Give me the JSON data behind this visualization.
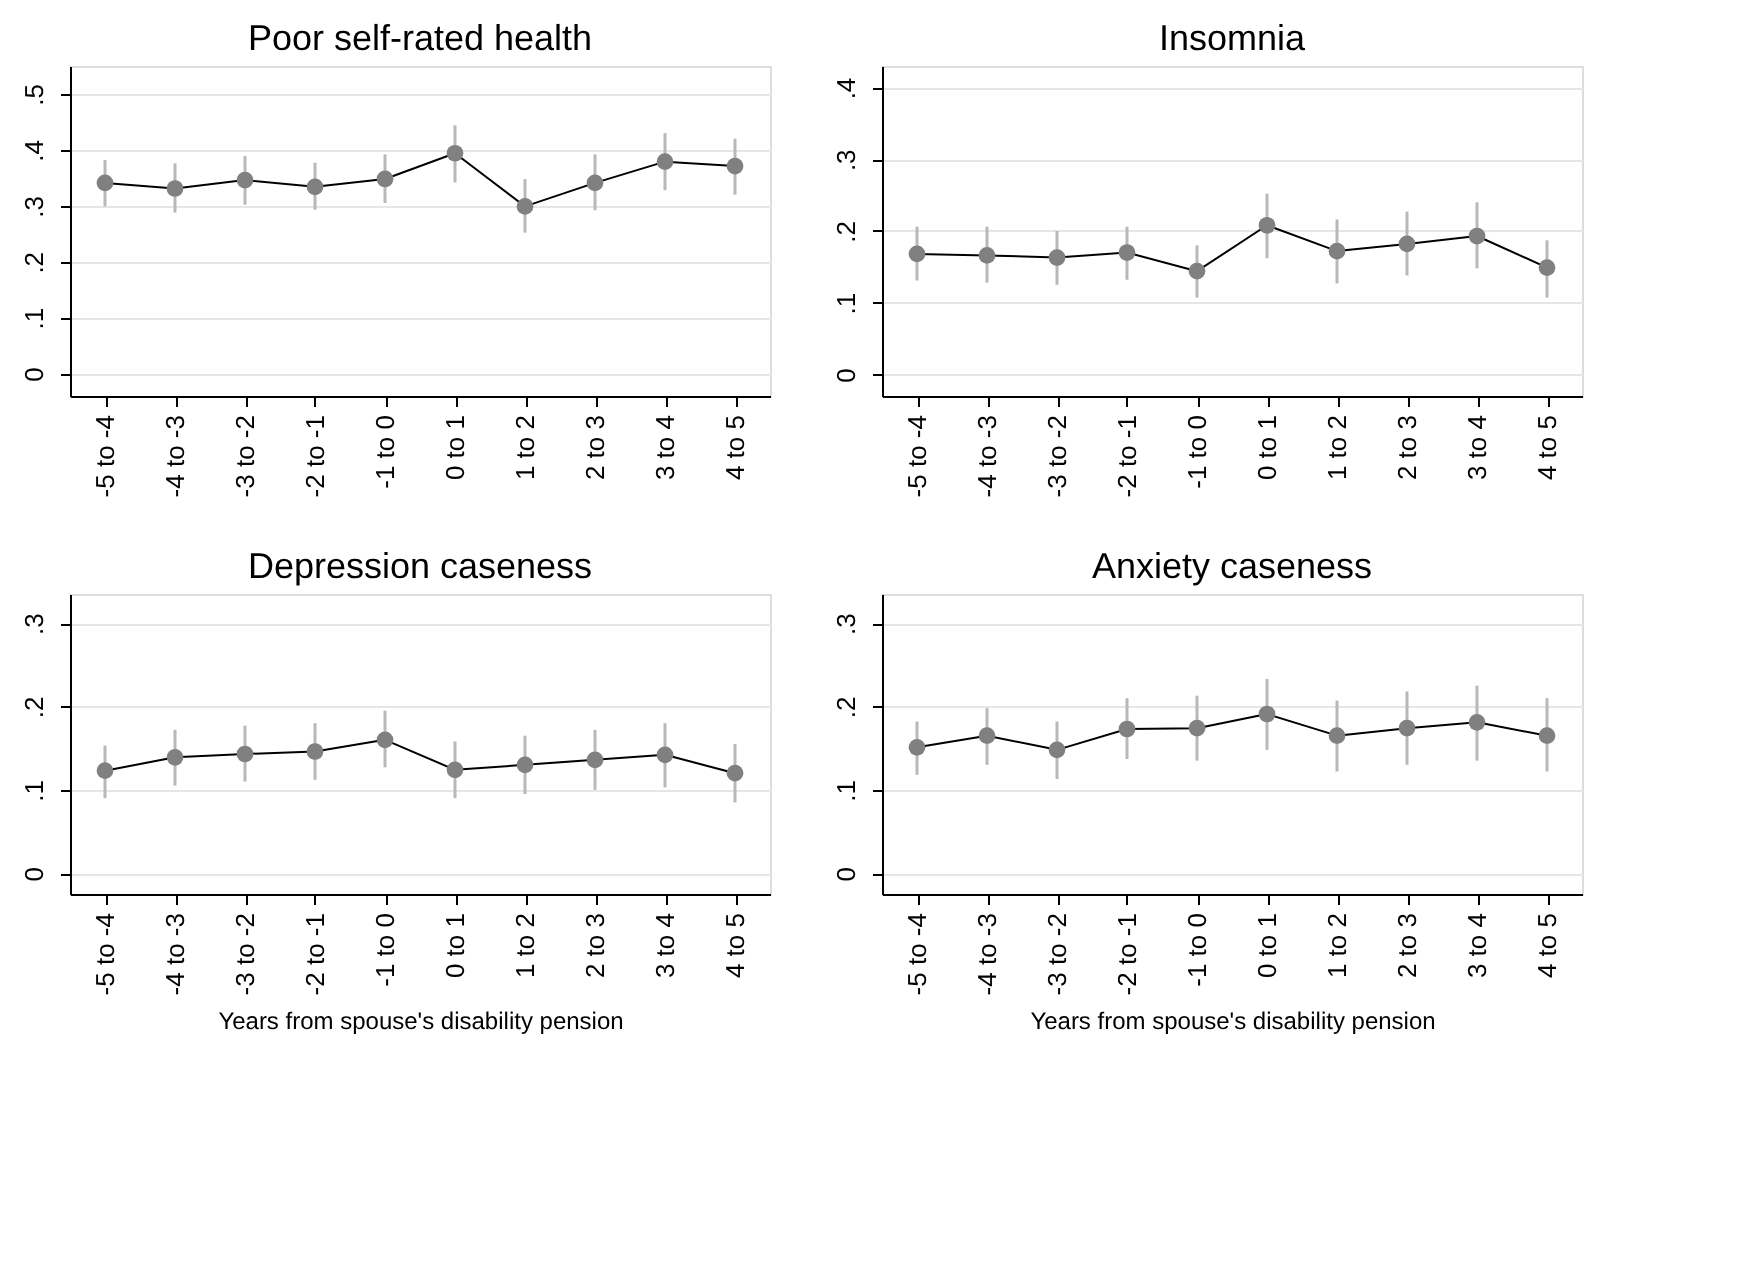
{
  "chart_data": [
    {
      "type": "line",
      "title": "Poor self-rated health",
      "categories": [
        "-5 to -4",
        "-4 to -3",
        "-3 to -2",
        "-2 to -1",
        "-1 to 0",
        "0 to 1",
        "1 to 2",
        "2 to 3",
        "3 to 4",
        "4 to 5"
      ],
      "series": [
        {
          "color": "#808080",
          "values": [
            0.341,
            0.331,
            0.346,
            0.334,
            0.348,
            0.394,
            0.299,
            0.341,
            0.379,
            0.371
          ],
          "errors": [
            [
              0.299,
              0.382
            ],
            [
              0.288,
              0.376
            ],
            [
              0.302,
              0.389
            ],
            [
              0.293,
              0.377
            ],
            [
              0.305,
              0.392
            ],
            [
              0.342,
              0.444
            ],
            [
              0.252,
              0.348
            ],
            [
              0.292,
              0.392
            ],
            [
              0.328,
              0.43
            ],
            [
              0.32,
              0.42
            ]
          ]
        }
      ],
      "ylim": [
        -0.04,
        0.55
      ],
      "yticks": [
        0,
        {
          "value": 0.1,
          "label": ".1"
        },
        {
          "value": 0.2,
          "label": ".2"
        },
        {
          "value": 0.3,
          "label": ".3"
        },
        {
          "value": 0.4,
          "label": ".4"
        },
        {
          "value": 0.5,
          "label": ".5"
        }
      ],
      "grid": "y",
      "marker": "circle",
      "line_style": "solid"
    },
    {
      "type": "line",
      "title": "Insomnia",
      "categories": [
        "-5 to -4",
        "-4 to -3",
        "-3 to -2",
        "-2 to -1",
        "-1 to 0",
        "0 to 1",
        "1 to 2",
        "2 to 3",
        "3 to 4",
        "4 to 5"
      ],
      "series": [
        {
          "color": "#808080",
          "values": [
            0.168,
            0.166,
            0.163,
            0.17,
            0.144,
            0.208,
            0.172,
            0.182,
            0.193,
            0.149
          ],
          "errors": [
            [
              0.131,
              0.206
            ],
            [
              0.128,
              0.206
            ],
            [
              0.125,
              0.2
            ],
            [
              0.132,
              0.206
            ],
            [
              0.107,
              0.18
            ],
            [
              0.162,
              0.252
            ],
            [
              0.127,
              0.216
            ],
            [
              0.138,
              0.227
            ],
            [
              0.148,
              0.24
            ],
            [
              0.107,
              0.187
            ]
          ]
        }
      ],
      "ylim": [
        -0.03,
        0.43
      ],
      "yticks": [
        0,
        {
          "value": 0.1,
          "label": ".1"
        },
        {
          "value": 0.2,
          "label": ".2"
        },
        {
          "value": 0.3,
          "label": ".3"
        },
        {
          "value": 0.4,
          "label": ".4"
        }
      ],
      "grid": "y",
      "marker": "circle",
      "line_style": "solid"
    },
    {
      "type": "line",
      "title": "Depression caseness",
      "xlabel": "Years from spouse's disability pension",
      "categories": [
        "-5 to -4",
        "-4 to -3",
        "-3 to -2",
        "-2 to -1",
        "-1 to 0",
        "0 to 1",
        "1 to 2",
        "2 to 3",
        "3 to 4",
        "4 to 5"
      ],
      "series": [
        {
          "color": "#808080",
          "values": [
            0.123,
            0.139,
            0.143,
            0.146,
            0.16,
            0.124,
            0.13,
            0.136,
            0.142,
            0.12
          ],
          "errors": [
            [
              0.09,
              0.153
            ],
            [
              0.105,
              0.172
            ],
            [
              0.11,
              0.177
            ],
            [
              0.112,
              0.18
            ],
            [
              0.127,
              0.195
            ],
            [
              0.09,
              0.158
            ],
            [
              0.095,
              0.165
            ],
            [
              0.1,
              0.172
            ],
            [
              0.103,
              0.18
            ],
            [
              0.085,
              0.155
            ]
          ]
        }
      ],
      "ylim": [
        -0.025,
        0.335
      ],
      "yticks": [
        0,
        {
          "value": 0.1,
          "label": ".1"
        },
        {
          "value": 0.2,
          "label": ".2"
        },
        {
          "value": 0.3,
          "label": ".3"
        }
      ],
      "grid": "y",
      "marker": "circle",
      "line_style": "solid"
    },
    {
      "type": "line",
      "title": "Anxiety caseness",
      "xlabel": "Years from spouse's disability pension",
      "categories": [
        "-5 to -4",
        "-4 to -3",
        "-3 to -2",
        "-2 to -1",
        "-1 to 0",
        "0 to 1",
        "1 to 2",
        "2 to 3",
        "3 to 4",
        "4 to 5"
      ],
      "series": [
        {
          "color": "#808080",
          "values": [
            0.151,
            0.165,
            0.148,
            0.173,
            0.174,
            0.191,
            0.165,
            0.174,
            0.181,
            0.165
          ],
          "errors": [
            [
              0.118,
              0.182
            ],
            [
              0.13,
              0.198
            ],
            [
              0.113,
              0.182
            ],
            [
              0.137,
              0.21
            ],
            [
              0.135,
              0.213
            ],
            [
              0.148,
              0.233
            ],
            [
              0.122,
              0.207
            ],
            [
              0.13,
              0.218
            ],
            [
              0.135,
              0.225
            ],
            [
              0.122,
              0.21
            ]
          ]
        }
      ],
      "ylim": [
        -0.025,
        0.335
      ],
      "yticks": [
        0,
        {
          "value": 0.1,
          "label": ".1"
        },
        {
          "value": 0.2,
          "label": ".2"
        },
        {
          "value": 0.3,
          "label": ".3"
        }
      ],
      "grid": "y",
      "marker": "circle",
      "line_style": "solid"
    }
  ]
}
